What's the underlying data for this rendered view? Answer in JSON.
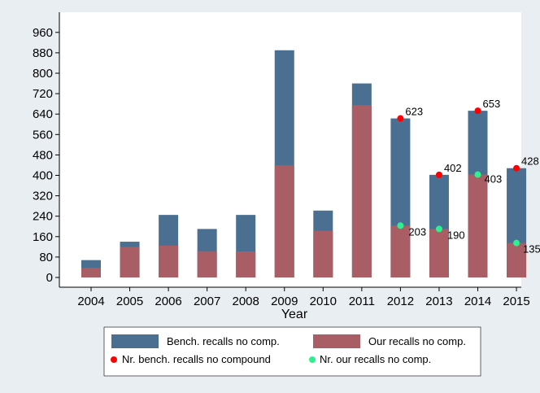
{
  "chart_data": {
    "type": "bar",
    "stacked": false,
    "title": "",
    "xlabel": "Year",
    "ylabel": "",
    "ylim": [
      0,
      1000
    ],
    "yticks": [
      0,
      80,
      160,
      240,
      320,
      400,
      480,
      560,
      640,
      720,
      800,
      880,
      960
    ],
    "grid": false,
    "categories": [
      "2004",
      "2005",
      "2006",
      "2007",
      "2008",
      "2009",
      "2010",
      "2011",
      "2012",
      "2013",
      "2014",
      "2015"
    ],
    "series": [
      {
        "name": "Bench. recalls no comp.",
        "color": "#4a6f91",
        "values": [
          68,
          140,
          245,
          190,
          245,
          890,
          262,
          760,
          623,
          402,
          653,
          428
        ]
      },
      {
        "name": "Our recalls no comp.",
        "color": "#a85e64",
        "values": [
          38,
          120,
          125,
          103,
          102,
          440,
          183,
          675,
          203,
          190,
          403,
          135
        ]
      }
    ],
    "markers": [
      {
        "name": "Nr. bench. recalls no compound",
        "color": "#ff0000",
        "points": [
          {
            "x": "2012",
            "y": 623,
            "label": "623"
          },
          {
            "x": "2013",
            "y": 402,
            "label": "402"
          },
          {
            "x": "2014",
            "y": 653,
            "label": "653"
          },
          {
            "x": "2015",
            "y": 428,
            "label": "428"
          }
        ]
      },
      {
        "name": "Nr. our recalls no comp.",
        "color": "#2ef08f",
        "points": [
          {
            "x": "2012",
            "y": 203,
            "label": "203"
          },
          {
            "x": "2013",
            "y": 190,
            "label": "190"
          },
          {
            "x": "2014",
            "y": 403,
            "label": "403"
          },
          {
            "x": "2015",
            "y": 135,
            "label": "135"
          }
        ]
      }
    ],
    "legend": {
      "placement": "bottom",
      "entries": [
        "Bench. recalls no comp.",
        "Our recalls no comp.",
        "Nr. bench. recalls no compound",
        "Nr. our recalls no comp."
      ]
    }
  }
}
